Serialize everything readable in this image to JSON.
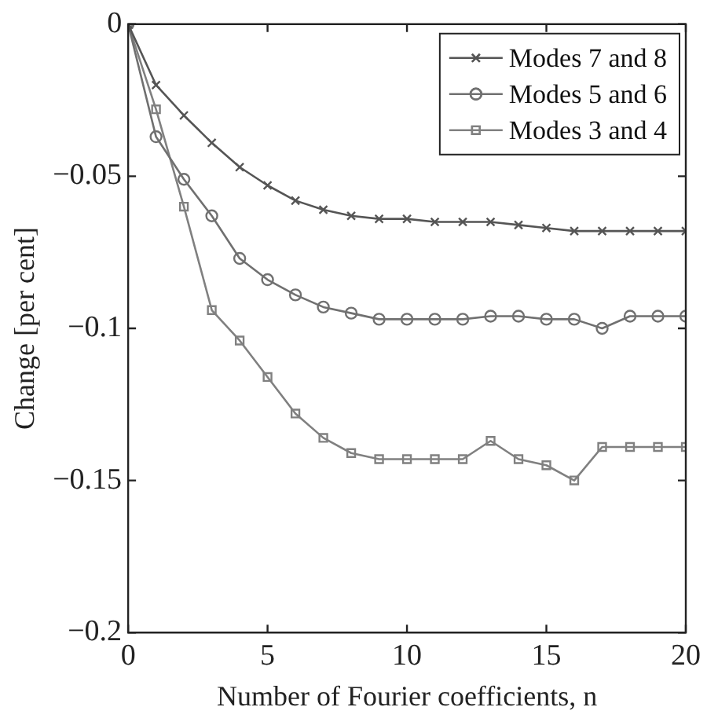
{
  "chart_data": {
    "type": "line",
    "xlabel": "Number of Fourier coefficients, n",
    "ylabel": "Change [per cent]",
    "xlim": [
      0,
      20
    ],
    "xticks": [
      0,
      5,
      10,
      15,
      20
    ],
    "ylim": [
      -0.2,
      0
    ],
    "yticks": [
      {
        "value": -0.2,
        "label": "−0.2"
      },
      {
        "value": -0.15,
        "label": "−0.15"
      },
      {
        "value": -0.1,
        "label": "−0.1"
      },
      {
        "value": -0.05,
        "label": "−0.05"
      },
      0
    ],
    "grid": false,
    "legend": "top right",
    "x": [
      0,
      1,
      2,
      3,
      4,
      5,
      6,
      7,
      8,
      9,
      10,
      11,
      12,
      13,
      14,
      15,
      16,
      17,
      18,
      19,
      20
    ],
    "series": [
      {
        "name": "Modes 7 and 8",
        "color": "#555555",
        "marker": "cross",
        "values": [
          0,
          -0.02,
          -0.03,
          -0.039,
          -0.047,
          -0.053,
          -0.058,
          -0.061,
          -0.063,
          -0.064,
          -0.064,
          -0.065,
          -0.065,
          -0.065,
          -0.066,
          -0.067,
          -0.068,
          -0.068,
          -0.068,
          -0.068,
          -0.068
        ]
      },
      {
        "name": "Modes 5 and 6",
        "color": "#707070",
        "marker": "circle",
        "values": [
          0,
          -0.037,
          -0.051,
          -0.063,
          -0.077,
          -0.084,
          -0.089,
          -0.093,
          -0.095,
          -0.097,
          -0.097,
          -0.097,
          -0.097,
          -0.096,
          -0.096,
          -0.097,
          -0.097,
          -0.1,
          -0.096,
          -0.096,
          -0.096
        ]
      },
      {
        "name": "Modes 3 and 4",
        "color": "#808080",
        "marker": "square",
        "values": [
          0,
          -0.028,
          -0.06,
          -0.094,
          -0.104,
          -0.116,
          -0.128,
          -0.136,
          -0.141,
          -0.143,
          -0.143,
          -0.143,
          -0.143,
          -0.137,
          -0.143,
          -0.145,
          -0.15,
          -0.139,
          -0.139,
          -0.139,
          -0.139
        ]
      }
    ]
  }
}
